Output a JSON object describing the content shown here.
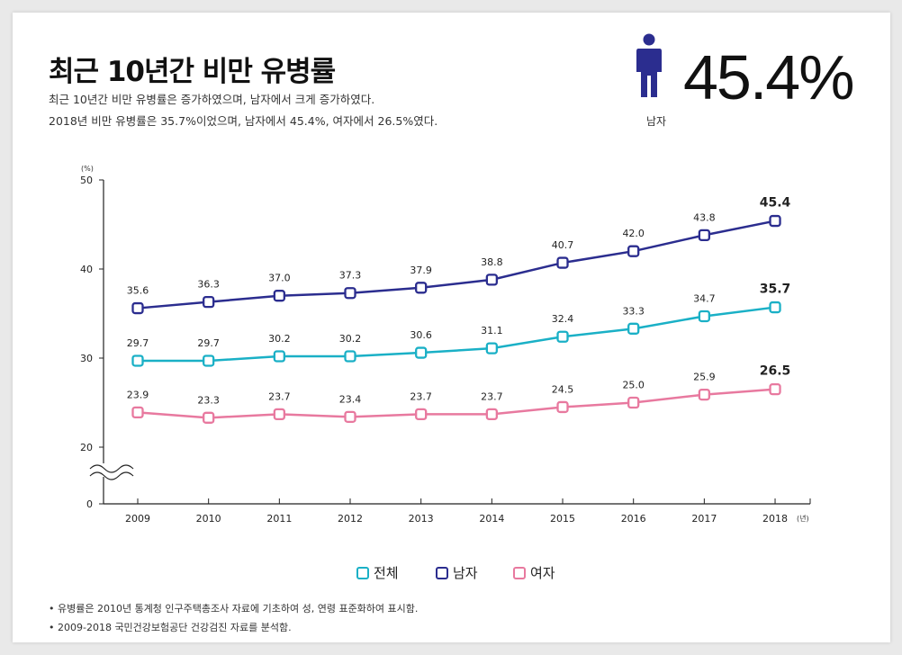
{
  "title": "최근 10년간 비만 유병률",
  "subtitle_lines": [
    "최근 10년간 비만 유병률은 증가하였으며, 남자에서 크게 증가하였다.",
    "2018년 비만 유병률은 35.7%이었으며, 남자에서 45.4%, 여자에서 26.5%였다."
  ],
  "highlight": {
    "icon": "male-person-icon",
    "value": "45.4%",
    "label": "남자",
    "color": "#2b2d8f"
  },
  "notes": [
    "• 유병률은 2010년 통계청 인구주택총조사 자료에 기초하여 성, 연령 표준화하여 표시함.",
    "• 2009-2018 국민건강보험공단 건강검진 자료를 분석함."
  ],
  "chart_data": {
    "type": "line",
    "categories": [
      "2009",
      "2010",
      "2011",
      "2012",
      "2013",
      "2014",
      "2015",
      "2016",
      "2017",
      "2018"
    ],
    "x_unit": "(년)",
    "y_unit": "(%)",
    "yticks": [
      0,
      20,
      30,
      40,
      50
    ],
    "ylim": [
      0,
      50
    ],
    "axis_break": true,
    "grid": false,
    "legend": "bottom",
    "series": [
      {
        "name": "전체",
        "color": "#1ab0c6",
        "values": [
          29.7,
          29.7,
          30.2,
          30.2,
          30.6,
          31.1,
          32.4,
          33.3,
          34.7,
          35.7
        ]
      },
      {
        "name": "남자",
        "color": "#2b2d8f",
        "values": [
          35.6,
          36.3,
          37.0,
          37.3,
          37.9,
          38.8,
          40.7,
          42.0,
          43.8,
          45.4
        ]
      },
      {
        "name": "여자",
        "color": "#e8799f",
        "values": [
          23.9,
          23.3,
          23.7,
          23.4,
          23.7,
          23.7,
          24.5,
          25.0,
          25.9,
          26.5
        ]
      }
    ]
  }
}
